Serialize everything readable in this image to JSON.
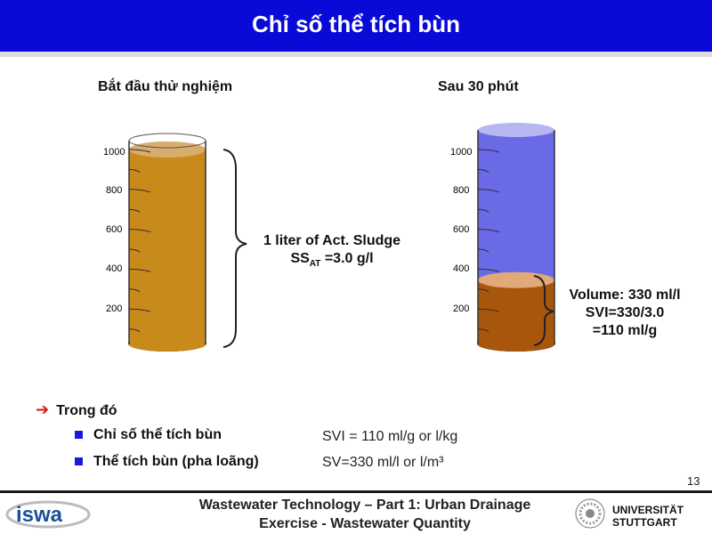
{
  "header": {
    "title": "Chỉ số thể tích bùn"
  },
  "cylinders": {
    "left": {
      "label": "Bắt đầu thử nghiệm",
      "scale": [
        "1000",
        "800",
        "600",
        "400",
        "200"
      ],
      "sludge_fraction": 1.0,
      "sludge_color": "#c98a1c",
      "brace_line1": "1 liter of Act. Sludge",
      "brace_line2_pre": "SS",
      "brace_line2_sub": "AT",
      "brace_line2_post": " =3.0 g/l"
    },
    "right": {
      "label": "Sau 30 phút",
      "scale": [
        "1000",
        "800",
        "600",
        "400",
        "200"
      ],
      "sludge_fraction": 0.33,
      "water_color": "#6a6ae6",
      "sludge_color": "#a8560c",
      "brace_line1": "Volume: 330 ml/l",
      "brace_line2": "SVI=330/3.0",
      "brace_line3": "=110 ml/g"
    }
  },
  "legend": {
    "heading": "Trong đó",
    "items": [
      {
        "label": "Chỉ số thể tích bùn",
        "formula": "SVI = 110  ml/g  or l/kg"
      },
      {
        "label": "Thể tích bùn (pha loãng)",
        "formula": "SV=330  ml/l   or l/m³"
      }
    ]
  },
  "page_number": "13",
  "footer": {
    "line1": "Wastewater Technology – Part 1: Urban Drainage",
    "line2": "Exercise - Wastewater Quantity",
    "logo_left": "iswa",
    "university_line1": "UNIVERSITÄT",
    "university_line2": "STUTTGART"
  },
  "colors": {
    "title_bar": "#0a0ad8",
    "bullet": "#1a1ad6",
    "arrow": "#d71a1a"
  }
}
